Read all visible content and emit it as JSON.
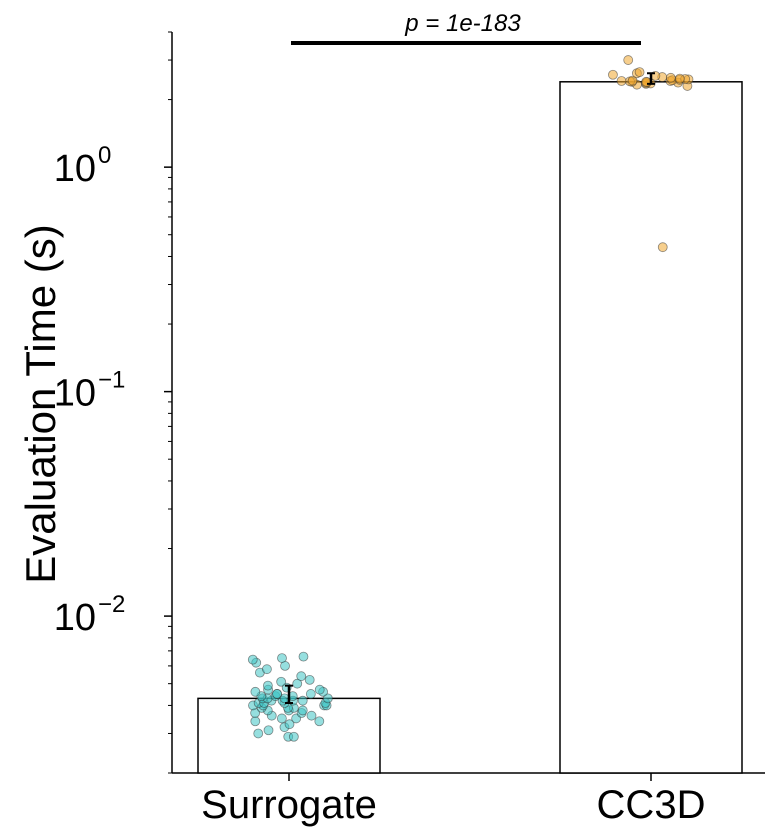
{
  "chart_data": {
    "type": "bar",
    "ylabel": "Evaluation Time (s)",
    "yscale": "log",
    "ylim": [
      0.002,
      4.0
    ],
    "categories": [
      "Surrogate",
      "CC3D"
    ],
    "values": [
      0.0043,
      2.4
    ],
    "error_bars": [
      {
        "low": 0.0041,
        "high": 0.0049
      },
      {
        "low": 2.35,
        "high": 2.62
      }
    ],
    "colors": {
      "Surrogate": "#40c4c4",
      "CC3D": "#f0a830"
    },
    "points": {
      "Surrogate": [
        0.0029,
        0.0029,
        0.003,
        0.0031,
        0.0032,
        0.0033,
        0.0034,
        0.0034,
        0.0035,
        0.0035,
        0.0036,
        0.0036,
        0.0037,
        0.0037,
        0.0038,
        0.0038,
        0.0038,
        0.0039,
        0.0039,
        0.0039,
        0.004,
        0.004,
        0.004,
        0.004,
        0.0041,
        0.0041,
        0.0041,
        0.0041,
        0.0042,
        0.0042,
        0.0042,
        0.0042,
        0.0043,
        0.0043,
        0.0043,
        0.0043,
        0.0044,
        0.0044,
        0.0044,
        0.0045,
        0.0045,
        0.0045,
        0.0046,
        0.0046,
        0.0047,
        0.0047,
        0.0048,
        0.0049,
        0.005,
        0.0051,
        0.0052,
        0.0054,
        0.0056,
        0.0058,
        0.006,
        0.0062,
        0.0064,
        0.0065,
        0.0066
      ],
      "CC3D": [
        0.44,
        2.3,
        2.33,
        2.35,
        2.36,
        2.37,
        2.38,
        2.39,
        2.4,
        2.4,
        2.41,
        2.42,
        2.42,
        2.43,
        2.44,
        2.45,
        2.46,
        2.47,
        2.48,
        2.5,
        2.52,
        2.55,
        2.58,
        2.62,
        2.65,
        3.0
      ]
    },
    "y_ticks": [
      {
        "base": "10",
        "exp": "0",
        "value": 1
      },
      {
        "base": "10",
        "exp": "−1",
        "value": 0.1
      },
      {
        "base": "10",
        "exp": "−2",
        "value": 0.01
      }
    ],
    "annotation": "p = 1e-183",
    "grid": false,
    "legend": false
  }
}
